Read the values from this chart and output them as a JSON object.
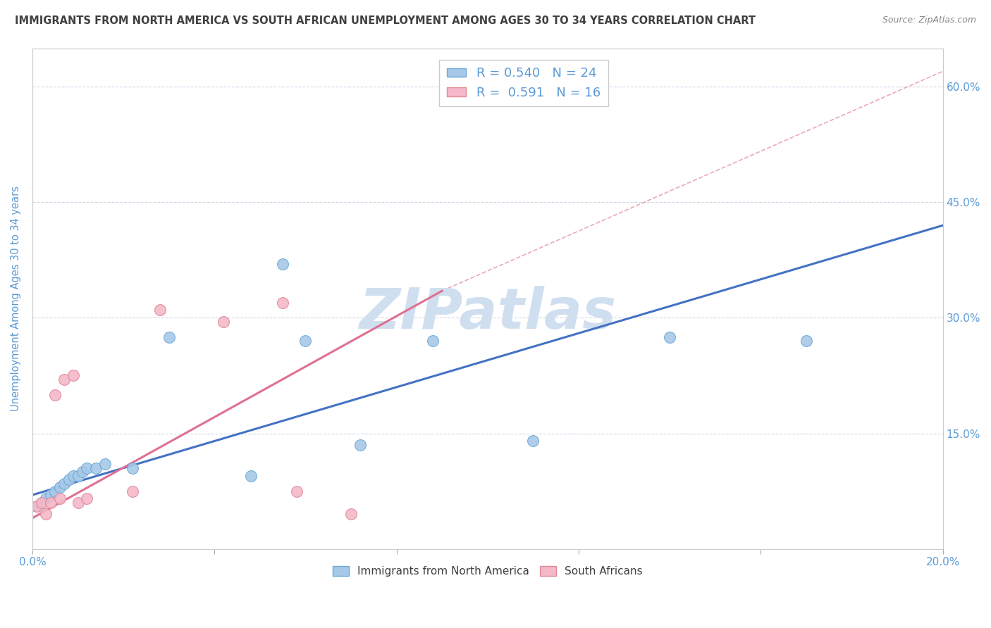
{
  "title": "IMMIGRANTS FROM NORTH AMERICA VS SOUTH AFRICAN UNEMPLOYMENT AMONG AGES 30 TO 34 YEARS CORRELATION CHART",
  "source": "Source: ZipAtlas.com",
  "ylabel": "Unemployment Among Ages 30 to 34 years",
  "xlim": [
    0.0,
    0.2
  ],
  "ylim": [
    0.0,
    0.65
  ],
  "x_ticks": [
    0.0,
    0.04,
    0.08,
    0.12,
    0.16,
    0.2
  ],
  "y_ticks": [
    0.0,
    0.15,
    0.3,
    0.45,
    0.6
  ],
  "blue_scatter_x": [
    0.001,
    0.002,
    0.003,
    0.004,
    0.005,
    0.006,
    0.007,
    0.008,
    0.009,
    0.01,
    0.011,
    0.012,
    0.014,
    0.016,
    0.022,
    0.03,
    0.048,
    0.055,
    0.06,
    0.072,
    0.088,
    0.11,
    0.14,
    0.17
  ],
  "blue_scatter_y": [
    0.055,
    0.06,
    0.065,
    0.07,
    0.075,
    0.08,
    0.085,
    0.09,
    0.095,
    0.095,
    0.1,
    0.105,
    0.105,
    0.11,
    0.105,
    0.275,
    0.095,
    0.37,
    0.27,
    0.135,
    0.27,
    0.14,
    0.275,
    0.27
  ],
  "pink_scatter_x": [
    0.001,
    0.002,
    0.003,
    0.004,
    0.005,
    0.006,
    0.007,
    0.009,
    0.01,
    0.012,
    0.022,
    0.028,
    0.042,
    0.055,
    0.058,
    0.07
  ],
  "pink_scatter_y": [
    0.055,
    0.06,
    0.045,
    0.06,
    0.2,
    0.065,
    0.22,
    0.225,
    0.06,
    0.065,
    0.075,
    0.31,
    0.295,
    0.32,
    0.075,
    0.045
  ],
  "blue_color": "#a8c8e8",
  "blue_edge": "#6aaad4",
  "pink_color": "#f4b8c8",
  "pink_edge": "#e08898",
  "blue_line_color": "#4472c4",
  "pink_line_color": "#e07090",
  "diag_line_color": "#e8a0b0",
  "watermark": "ZIPatlas",
  "watermark_color": "#d0dff0",
  "legend_blue_label": "Immigrants from North America",
  "legend_pink_label": "South Africans",
  "background_color": "#ffffff",
  "grid_color": "#d0d8e8",
  "title_color": "#404040",
  "axis_color": "#5b9bd5",
  "blue_R": 0.54,
  "blue_N": 24,
  "pink_R": 0.591,
  "pink_N": 16,
  "blue_line_x": [
    0.0,
    0.2
  ],
  "blue_line_y": [
    0.07,
    0.42
  ],
  "pink_line_x": [
    0.0,
    0.09
  ],
  "pink_line_y": [
    0.04,
    0.335
  ],
  "diag_line_x": [
    0.09,
    0.2
  ],
  "diag_line_y": [
    0.335,
    0.62
  ]
}
